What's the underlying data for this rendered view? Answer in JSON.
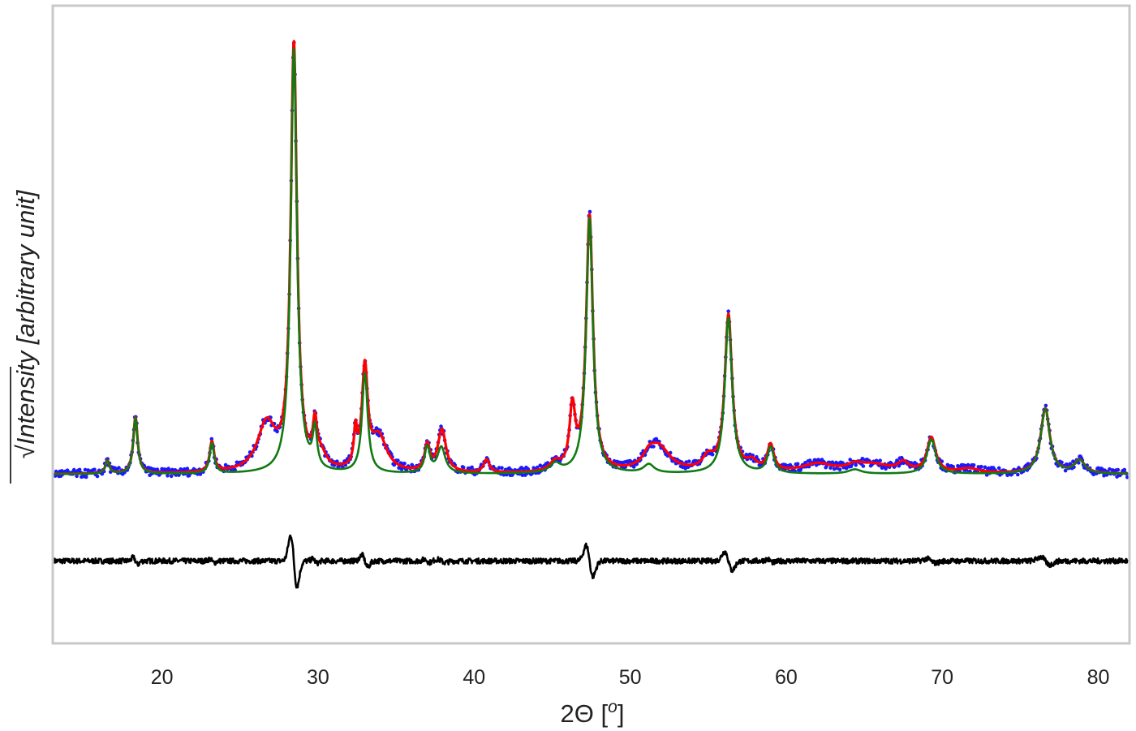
{
  "chart_data": {
    "type": "line",
    "title": "",
    "xlabel": "2Θ [°]",
    "xlabel_parts": {
      "main": "2Θ [",
      "superscript": "o",
      "end": "]"
    },
    "ylabel": "√Intensity [arbitrary unit]",
    "ylabel_parts": {
      "sqrt": "√",
      "quantity": "Intensity",
      "unit": "[arbitrary unit]"
    },
    "xlim": [
      13,
      82
    ],
    "ylim": [
      -0.37,
      1.1
    ],
    "x_ticks": [
      20,
      30,
      40,
      50,
      60,
      70,
      80
    ],
    "y_ticks": [],
    "grid": false,
    "legend": "none",
    "baseline": 0.02,
    "difference_offset": -0.18,
    "peaks": [
      {
        "x": 16.5,
        "h": 0.03,
        "w": 0.15,
        "phase": "green"
      },
      {
        "x": 18.3,
        "h": 0.13,
        "w": 0.17,
        "phase": "green"
      },
      {
        "x": 23.2,
        "h": 0.07,
        "w": 0.17,
        "phase": "green"
      },
      {
        "x": 26.7,
        "h": 0.11,
        "w": 0.7,
        "phase": "red"
      },
      {
        "x": 28.45,
        "h": 0.98,
        "w": 0.24,
        "phase": "green"
      },
      {
        "x": 29.8,
        "h": 0.09,
        "w": 0.16,
        "phase": "green"
      },
      {
        "x": 30.2,
        "h": 0.03,
        "w": 0.4,
        "phase": "red"
      },
      {
        "x": 32.4,
        "h": 0.08,
        "w": 0.12,
        "phase": "red"
      },
      {
        "x": 33.0,
        "h": 0.23,
        "w": 0.22,
        "phase": "green"
      },
      {
        "x": 33.9,
        "h": 0.08,
        "w": 0.6,
        "phase": "red"
      },
      {
        "x": 37.0,
        "h": 0.06,
        "w": 0.2,
        "phase": "green"
      },
      {
        "x": 37.9,
        "h": 0.06,
        "w": 0.3,
        "phase": "green"
      },
      {
        "x": 38.0,
        "h": 0.04,
        "w": 0.3,
        "phase": "red"
      },
      {
        "x": 40.8,
        "h": 0.03,
        "w": 0.22,
        "phase": "red"
      },
      {
        "x": 45.2,
        "h": 0.02,
        "w": 0.4,
        "phase": "green"
      },
      {
        "x": 46.3,
        "h": 0.14,
        "w": 0.22,
        "phase": "red"
      },
      {
        "x": 47.4,
        "h": 0.59,
        "w": 0.26,
        "phase": "green"
      },
      {
        "x": 51.2,
        "h": 0.02,
        "w": 0.4,
        "phase": "green"
      },
      {
        "x": 51.8,
        "h": 0.06,
        "w": 0.9,
        "phase": "red"
      },
      {
        "x": 55.0,
        "h": 0.03,
        "w": 0.45,
        "phase": "red"
      },
      {
        "x": 56.3,
        "h": 0.36,
        "w": 0.28,
        "phase": "green"
      },
      {
        "x": 57.8,
        "h": 0.02,
        "w": 0.4,
        "phase": "red"
      },
      {
        "x": 59.0,
        "h": 0.06,
        "w": 0.25,
        "phase": "green"
      },
      {
        "x": 62.0,
        "h": 0.02,
        "w": 1.2,
        "phase": "red"
      },
      {
        "x": 64.4,
        "h": 0.01,
        "w": 0.5,
        "phase": "green"
      },
      {
        "x": 65.5,
        "h": 0.02,
        "w": 1.5,
        "phase": "red"
      },
      {
        "x": 67.5,
        "h": 0.02,
        "w": 0.4,
        "phase": "red"
      },
      {
        "x": 69.3,
        "h": 0.08,
        "w": 0.33,
        "phase": "green"
      },
      {
        "x": 71.7,
        "h": 0.01,
        "w": 0.8,
        "phase": "red"
      },
      {
        "x": 76.6,
        "h": 0.15,
        "w": 0.35,
        "phase": "green"
      },
      {
        "x": 78.8,
        "h": 0.03,
        "w": 0.4,
        "phase": "green"
      }
    ],
    "series": [
      {
        "role": "observed",
        "marker": "dots",
        "color": "#1a1aff"
      },
      {
        "role": "calculated total",
        "marker": "line",
        "color": "#ff0000"
      },
      {
        "role": "calculated phase",
        "marker": "line",
        "color": "#127a12"
      },
      {
        "role": "difference",
        "marker": "line",
        "color": "#000000"
      }
    ],
    "frame_color": "#c8c8c8"
  }
}
